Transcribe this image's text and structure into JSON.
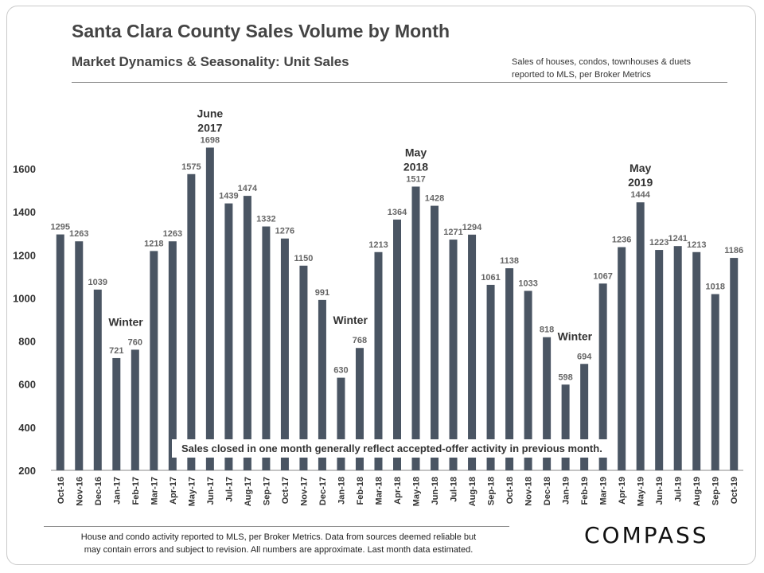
{
  "header": {
    "title": "Santa Clara County Sales Volume by Month",
    "subtitle": "Market Dynamics & Seasonality: Unit Sales",
    "note_line1": "Sales of houses, condos, townhouses & duets",
    "note_line2": "reported to MLS, per Broker Metrics"
  },
  "chart_data": {
    "type": "bar",
    "categories": [
      "Oct-16",
      "Nov-16",
      "Dec-16",
      "Jan-17",
      "Feb-17",
      "Mar-17",
      "Apr-17",
      "May-17",
      "Jun-17",
      "Jul-17",
      "Aug-17",
      "Sep-17",
      "Oct-17",
      "Nov-17",
      "Dec-17",
      "Jan-18",
      "Feb-18",
      "Mar-18",
      "Apr-18",
      "May-18",
      "Jun-18",
      "Jul-18",
      "Aug-18",
      "Sep-18",
      "Oct-18",
      "Nov-18",
      "Dec-18",
      "Jan-19",
      "Feb-19",
      "Mar-19",
      "Apr-19",
      "May-19",
      "Jun-19",
      "Jul-19",
      "Aug-19",
      "Sep-19",
      "Oct-19"
    ],
    "values": [
      1295,
      1263,
      1039,
      721,
      760,
      1218,
      1263,
      1575,
      1698,
      1439,
      1474,
      1332,
      1276,
      1150,
      991,
      630,
      768,
      1213,
      1364,
      1517,
      1428,
      1271,
      1294,
      1061,
      1138,
      1033,
      818,
      598,
      694,
      1067,
      1236,
      1444,
      1223,
      1241,
      1213,
      1018,
      1186
    ],
    "ylim": [
      200,
      1700
    ],
    "yticks": [
      200,
      400,
      600,
      800,
      1000,
      1200,
      1400,
      1600
    ],
    "bar_color": "#4a5563",
    "annotations": [
      {
        "category_index": 8,
        "lines": [
          "June",
          "2017"
        ]
      },
      {
        "category_index": 19,
        "lines": [
          "May",
          "2018"
        ]
      },
      {
        "category_index": 31,
        "lines": [
          "May",
          "2019"
        ]
      },
      {
        "category_index": 3.5,
        "lines": [
          "Winter"
        ]
      },
      {
        "category_index": 15.5,
        "lines": [
          "Winter"
        ]
      },
      {
        "category_index": 27.5,
        "lines": [
          "Winter"
        ]
      }
    ],
    "callout": "Sales closed in one month generally reflect accepted-offer activity in previous month."
  },
  "footer": {
    "line1": "House and condo activity reported to MLS, per Broker Metrics. Data from sources deemed reliable but",
    "line2": "may contain errors and subject to revision. All numbers are approximate. Last month data estimated."
  },
  "logo": {
    "text": "COMPASS"
  }
}
